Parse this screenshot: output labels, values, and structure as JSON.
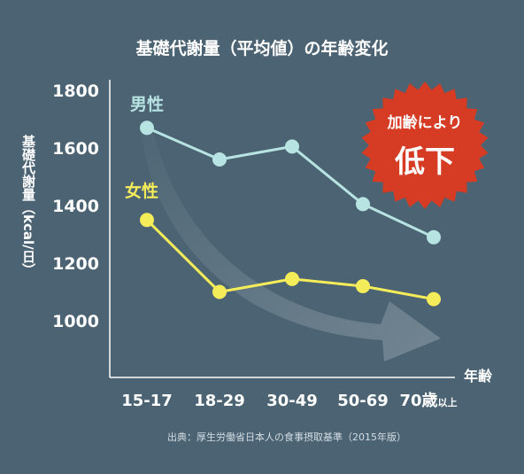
{
  "chart_data": {
    "type": "line",
    "title": "基礎代謝量（平均値）の年齢変化",
    "ylabel": "基礎代謝量（kcal/日）",
    "xlabel": "年齢",
    "ylim": [
      850,
      1850
    ],
    "yticks": [
      1800,
      1600,
      1400,
      1200,
      1000
    ],
    "categories": [
      "15-17",
      "18-29",
      "30-49",
      "50-69",
      "70"
    ],
    "last_category_suffix": "歳",
    "last_category_note": "以上",
    "series": [
      {
        "name": "男性",
        "color": "#b7e3e2",
        "values": [
          1670,
          1560,
          1605,
          1405,
          1290
        ]
      },
      {
        "name": "女性",
        "color": "#f5ec5a",
        "values": [
          1350,
          1100,
          1145,
          1120,
          1075
        ]
      }
    ],
    "grid": false,
    "badge": {
      "line1": "加齢により",
      "line2": "低下",
      "color": "#d53c23"
    },
    "source": "出典：厚生労働省日本人の食事摂取基準（2015年版）"
  }
}
